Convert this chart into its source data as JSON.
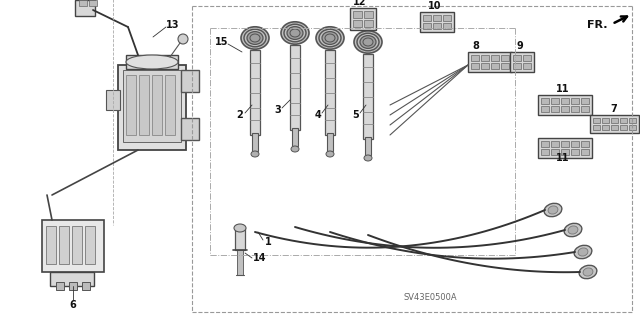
{
  "bg_color": "#ffffff",
  "line_color": "#000000",
  "diagram_code": "SV43E0500A",
  "fr_label": "FR.",
  "fig_width": 6.4,
  "fig_height": 3.19,
  "dpi": 100
}
